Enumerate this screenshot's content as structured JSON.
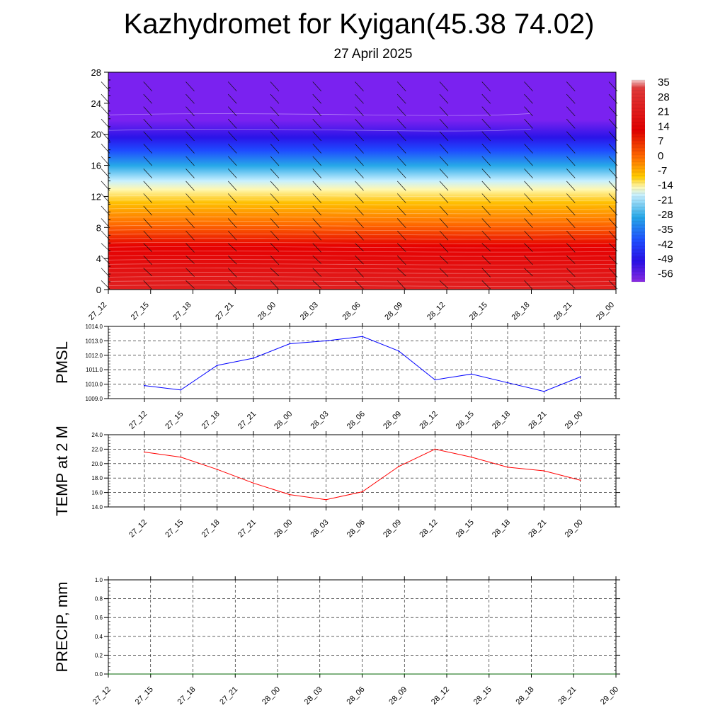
{
  "title": "Kazhydromet for Kyigan(45.38 74.02)",
  "subtitle": "27 April 2025",
  "time_labels": [
    "27_12",
    "27_15",
    "27_18",
    "27_21",
    "28_00",
    "28_03",
    "28_06",
    "28_09",
    "28_12",
    "28_15",
    "28_18",
    "28_21",
    "29_00"
  ],
  "colors": {
    "pmsl_line": "#0000ff",
    "temp_line": "#ff0000",
    "precip_line": "#006400",
    "grid": "#000000"
  },
  "chart_data": [
    {
      "type": "heatmap",
      "description_of_axes": "height vs forecast time",
      "x": [
        "27_12",
        "27_15",
        "27_18",
        "27_21",
        "28_00",
        "28_03",
        "28_06",
        "28_09",
        "28_12",
        "28_15",
        "28_18",
        "28_21",
        "29_00"
      ],
      "ylim": [
        0,
        28
      ],
      "y_ticks": [
        "0",
        "4",
        "8",
        "12",
        "16",
        "20",
        "24",
        "28"
      ],
      "colorbar": {
        "labels": [
          "35",
          "28",
          "21",
          "14",
          "7",
          "0",
          "-7",
          "-14",
          "-21",
          "-28",
          "-35",
          "-42",
          "-49",
          "-56"
        ],
        "range": [
          -60,
          38
        ]
      },
      "temperature_profile": [
        {
          "y": 0,
          "v": 26
        },
        {
          "y": 2,
          "v": 27
        },
        {
          "y": 4,
          "v": 24
        },
        {
          "y": 8,
          "v": 17
        },
        {
          "y": 11,
          "v": 5
        },
        {
          "y": 13,
          "v": -12
        },
        {
          "y": 15,
          "v": -30
        },
        {
          "y": 17,
          "v": -45
        },
        {
          "y": 19,
          "v": -58
        },
        {
          "y": 21,
          "v": -56
        },
        {
          "y": 28,
          "v": -55
        }
      ],
      "wind_barbs": true
    },
    {
      "type": "line",
      "ylabel": "PMSL",
      "categories": [
        "27_12",
        "27_15",
        "27_18",
        "27_21",
        "28_00",
        "28_03",
        "28_06",
        "28_09",
        "28_12",
        "28_15",
        "28_18",
        "28_21",
        "29_00"
      ],
      "values": [
        1009.9,
        1009.6,
        1011.3,
        1011.8,
        1012.8,
        1013.0,
        1013.3,
        1012.3,
        1010.3,
        1010.7,
        1010.1,
        1009.5,
        1010.5
      ],
      "ylim": [
        1009.0,
        1014.0
      ],
      "y_ticks": [
        "1009.0",
        "1010.0",
        "1011.0",
        "1012.0",
        "1013.0",
        "1014.0"
      ]
    },
    {
      "type": "line",
      "ylabel": "TEMP at 2 M",
      "categories": [
        "27_12",
        "27_15",
        "27_18",
        "27_21",
        "28_00",
        "28_03",
        "28_06",
        "28_09",
        "28_12",
        "28_15",
        "28_18",
        "28_21",
        "29_00"
      ],
      "values": [
        21.6,
        20.9,
        19.2,
        17.3,
        15.7,
        15.0,
        16.1,
        19.6,
        22.0,
        20.9,
        19.5,
        19.0,
        17.7
      ],
      "ylim": [
        14.0,
        24.0
      ],
      "y_ticks": [
        "14.0",
        "16.0",
        "18.0",
        "20.0",
        "22.0",
        "24.0"
      ]
    },
    {
      "type": "line",
      "ylabel": "PRECIP, mm",
      "categories": [
        "27_12",
        "27_15",
        "27_18",
        "27_21",
        "28_00",
        "28_03",
        "28_06",
        "28_09",
        "28_12",
        "28_15",
        "28_18",
        "28_21",
        "29_00"
      ],
      "values": [
        0,
        0,
        0,
        0,
        0,
        0,
        0,
        0,
        0,
        0,
        0,
        0,
        0
      ],
      "ylim": [
        0.0,
        1.0
      ],
      "y_ticks": [
        "0.0",
        "0.2",
        "0.4",
        "0.6",
        "0.8",
        "1.0"
      ]
    }
  ]
}
